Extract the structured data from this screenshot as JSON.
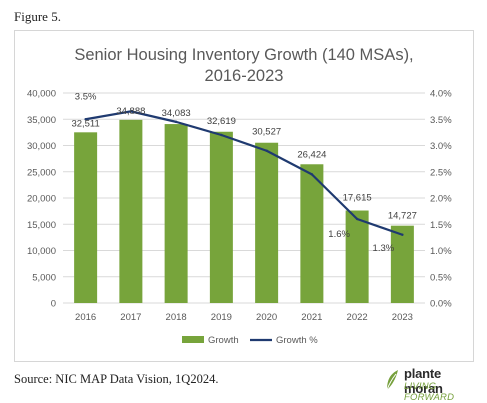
{
  "figure_label": "Figure 5.",
  "source": "Source: NIC MAP Data Vision, 1Q2024.",
  "logo": {
    "name": "plante moran",
    "tagline": "LIVING FORWARD"
  },
  "colors": {
    "bar": "#77a43b",
    "line": "#1f3a70",
    "grid": "#d9d9d9",
    "axis_text": "#595959"
  },
  "chart_data": {
    "type": "bar",
    "title": "Senior Housing Inventory Growth (140 MSAs), 2016-2023",
    "title_lines": [
      "Senior Housing Inventory Growth (140 MSAs),",
      "2016-2023"
    ],
    "categories": [
      "2016",
      "2017",
      "2018",
      "2019",
      "2020",
      "2021",
      "2022",
      "2023"
    ],
    "series": [
      {
        "name": "Growth",
        "type": "bar",
        "axis": "left",
        "values": [
          32511,
          34888,
          34083,
          32619,
          30527,
          26424,
          17615,
          14727
        ],
        "labels": [
          "32,511",
          "34,888",
          "34,083",
          "32,619",
          "30,527",
          "26,424",
          "17,615",
          "14,727"
        ]
      },
      {
        "name": "Growth %",
        "type": "line",
        "axis": "right",
        "values": [
          3.5,
          3.65,
          3.45,
          3.2,
          2.9,
          2.45,
          1.6,
          1.3
        ],
        "labels": [
          "3.5%",
          "",
          "",
          "",
          "",
          "",
          "1.6%",
          "1.3%"
        ]
      }
    ],
    "ylim": [
      0,
      40000
    ],
    "y2lim": [
      0,
      4.0
    ],
    "yticks": [
      "0",
      "5,000",
      "10,000",
      "15,000",
      "20,000",
      "25,000",
      "30,000",
      "35,000",
      "40,000"
    ],
    "y2ticks": [
      "0.0%",
      "0.5%",
      "1.0%",
      "1.5%",
      "2.0%",
      "2.5%",
      "3.0%",
      "3.5%",
      "4.0%"
    ],
    "grid": true,
    "legend": "bottom"
  }
}
